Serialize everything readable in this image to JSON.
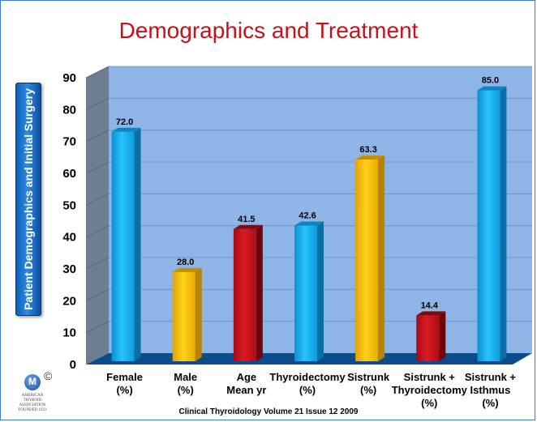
{
  "chart_data": {
    "type": "bar",
    "title": "Demographics and Treatment",
    "ylabel": "Patient Demographics and Initial Surgery",
    "xlabel": "",
    "ylim": [
      0,
      90
    ],
    "yticks": [
      0,
      10,
      20,
      30,
      40,
      50,
      60,
      70,
      80,
      90
    ],
    "grid": true,
    "categories": [
      [
        "Female",
        "(%)"
      ],
      [
        "Male",
        "(%)"
      ],
      [
        "Age",
        "Mean yr"
      ],
      [
        "Thyroidectomy",
        "(%)"
      ],
      [
        "Sistrunk",
        "(%)"
      ],
      [
        "Sistrunk +",
        "Thyroidectomy",
        "(%)"
      ],
      [
        "Sistrunk +",
        "Isthmus",
        "(%)"
      ]
    ],
    "values": [
      72.0,
      28.0,
      41.5,
      42.6,
      63.3,
      14.4,
      85.0
    ],
    "value_labels": [
      "72.0",
      "28.0",
      "41.5",
      "42.6",
      "63.3",
      "14.4",
      "85.0"
    ],
    "bar_colors": [
      "#14b4ef",
      "#f7bd00",
      "#c4111a",
      "#14b4ef",
      "#f7bd00",
      "#c4111a",
      "#14b4ef"
    ],
    "colors": {
      "title": "#c8101a",
      "plot_back": "#8fb5e6",
      "plot_side": "#6f7f92",
      "floor": "#0a4c8c"
    }
  },
  "footer": "Clinical Thyroidology Volume 21 Issue 12 2009",
  "logo": {
    "mark": "M",
    "copyright": "©",
    "text": "AMERICAN\nTHYROID\nASSOCIATION\nFOUNDED 1923"
  }
}
